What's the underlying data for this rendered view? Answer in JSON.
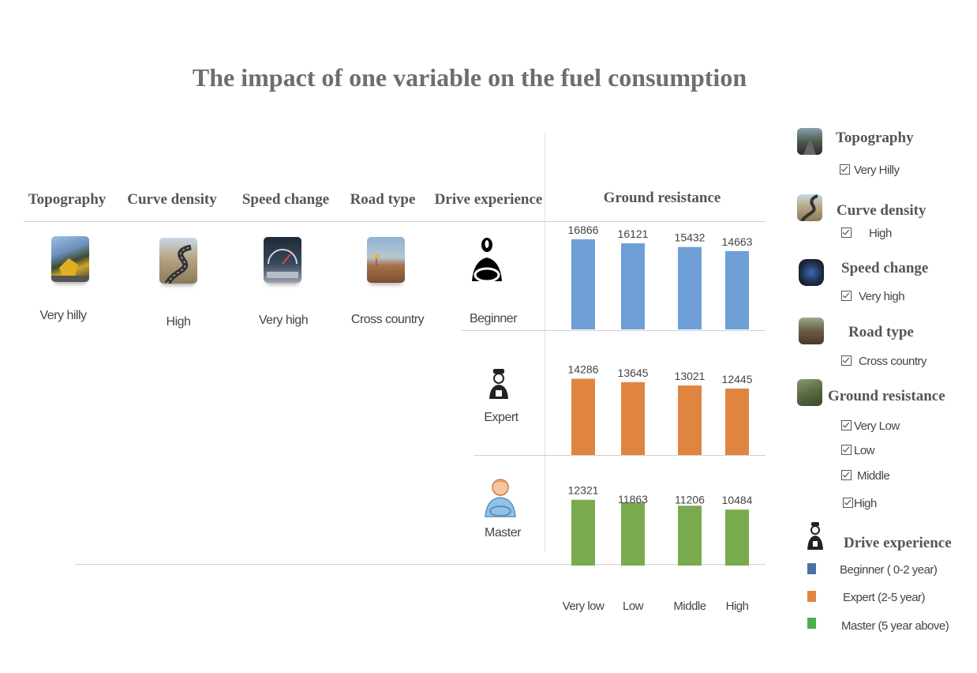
{
  "title": "The impact of one variable on the fuel consumption",
  "columns": {
    "topography": {
      "label": "Topography",
      "value": "Very hilly"
    },
    "curve_density": {
      "label": "Curve density",
      "value": "High"
    },
    "speed_change": {
      "label": "Speed change",
      "value": "Very high"
    },
    "road_type": {
      "label": "Road type",
      "value": "Cross country"
    },
    "drive_experience": {
      "label": "Drive experience"
    },
    "ground_resistance": {
      "label": "Ground resistance"
    }
  },
  "rows": {
    "beginner": "Beginner",
    "expert": "Expert",
    "master": "Master"
  },
  "legend": {
    "topography": {
      "title": "Topography",
      "items": [
        "Very Hilly"
      ]
    },
    "curve_density": {
      "title": "Curve density",
      "items": [
        "High"
      ]
    },
    "speed_change": {
      "title": "Speed change",
      "items": [
        "Very high"
      ]
    },
    "road_type": {
      "title": "Road type",
      "items": [
        "Cross country"
      ]
    },
    "ground_resistance": {
      "title": "Ground resistance",
      "items": [
        "Very Low",
        "Low",
        "Middle",
        "High"
      ]
    },
    "drive_experience": {
      "title": "Drive experience",
      "items": [
        "Beginner ( 0-2 year)",
        "Expert  (2-5 year)",
        "Master (5 year above)"
      ]
    }
  },
  "colors": {
    "beginner": "#6d9fd6",
    "expert": "#e08540",
    "master": "#7aaa4e",
    "beginner_legend": "#4a70a8",
    "master_legend": "#4caf50"
  },
  "chart_data": {
    "type": "bar",
    "categories": [
      "Very low",
      "Low",
      "Middle",
      "High"
    ],
    "series": [
      {
        "name": "Beginner",
        "values": [
          16866,
          16121,
          15432,
          14663
        ]
      },
      {
        "name": "Expert",
        "values": [
          14286,
          13645,
          13021,
          12445
        ]
      },
      {
        "name": "Master",
        "values": [
          12321,
          11863,
          11206,
          10484
        ]
      }
    ],
    "xlabel": "Ground resistance",
    "grid": false
  }
}
